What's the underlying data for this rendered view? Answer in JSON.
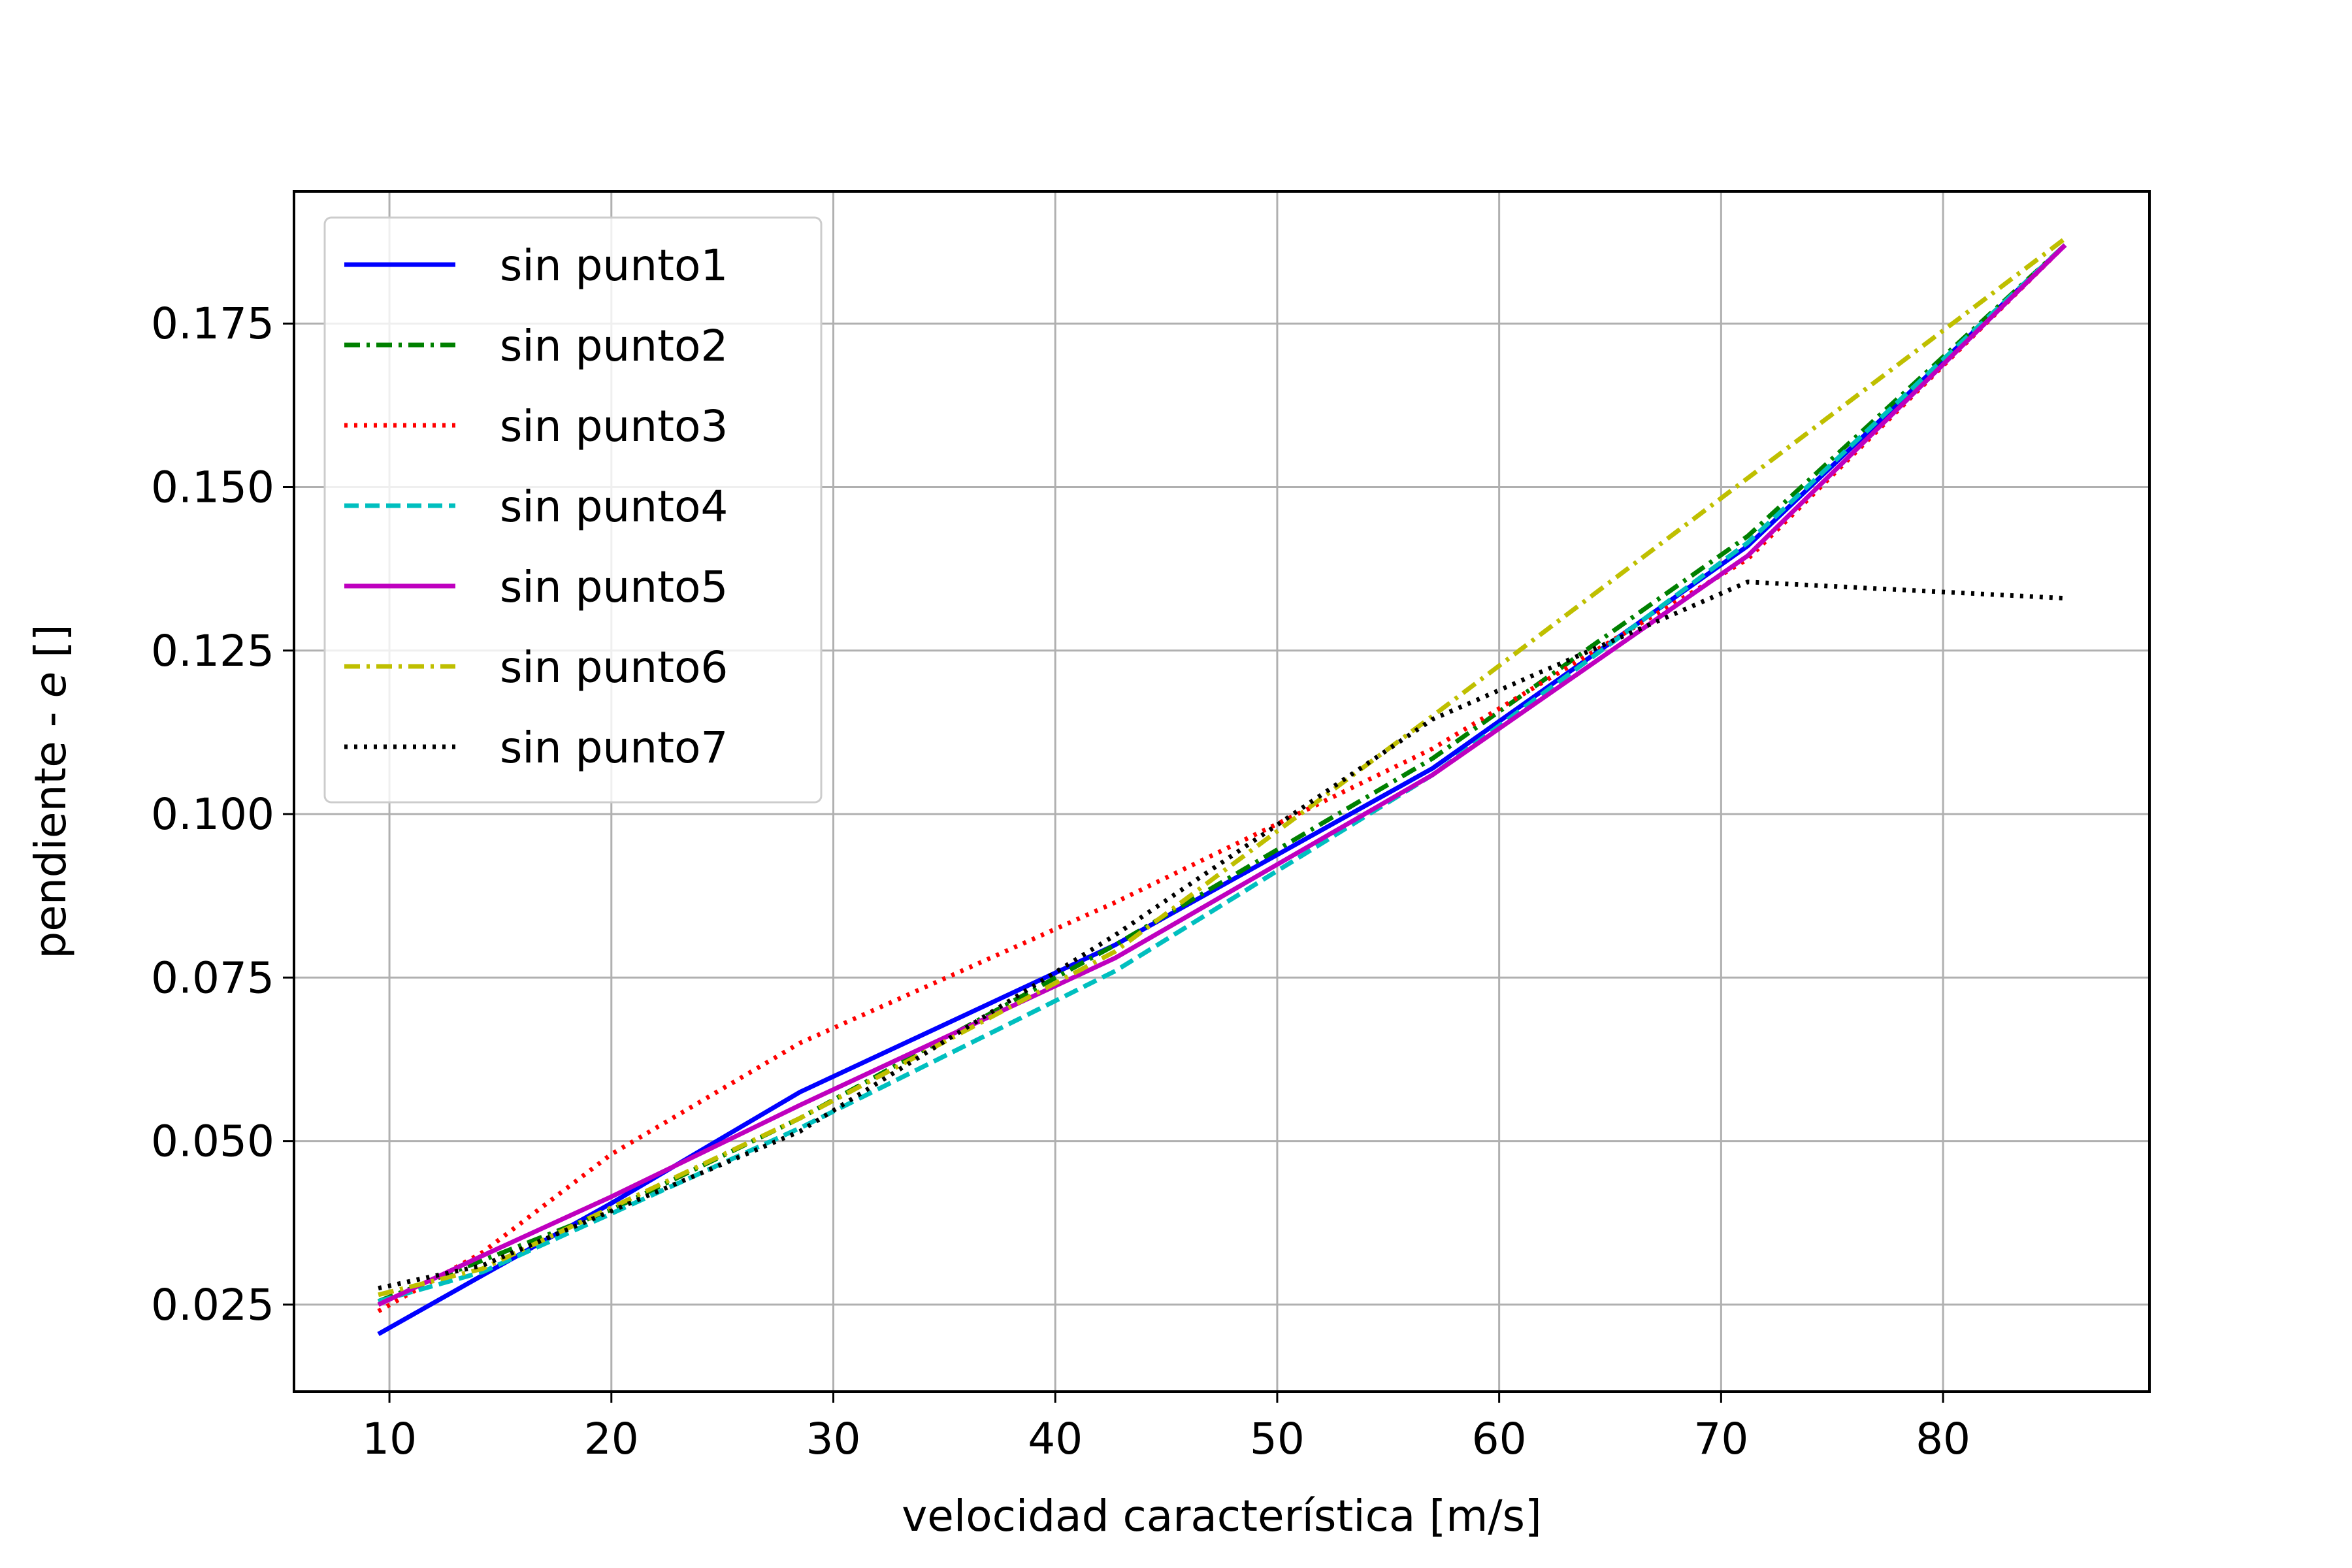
{
  "chart_data": {
    "type": "line",
    "title": "",
    "xlabel": "velocidad característica [m/s]",
    "ylabel_main": "pendiente - ",
    "ylabel_italic": "e",
    "ylabel_tail": " []",
    "xlim": [
      5.7,
      89.3
    ],
    "ylim": [
      0.0117,
      0.1952
    ],
    "xticks": [
      10,
      20,
      30,
      40,
      50,
      60,
      70,
      80
    ],
    "xtick_labels": [
      "10",
      "20",
      "30",
      "40",
      "50",
      "60",
      "70",
      "80"
    ],
    "yticks": [
      0.025,
      0.05,
      0.075,
      0.1,
      0.125,
      0.15,
      0.175
    ],
    "ytick_labels": [
      "0.025",
      "0.050",
      "0.075",
      "0.100",
      "0.125",
      "0.150",
      "0.175"
    ],
    "grid": true,
    "legend_position": "upper-left",
    "series": [
      {
        "name": "sin punto1",
        "color": "#0000ff",
        "dash": "solid",
        "x": [
          9.5,
          14.2,
          20.0,
          28.5,
          42.7,
          57.0,
          71.2,
          85.5
        ],
        "y": [
          0.0205,
          0.0295,
          0.0405,
          0.0575,
          0.08,
          0.107,
          0.141,
          0.187
        ]
      },
      {
        "name": "sin punto2",
        "color": "#008000",
        "dash": "dashdot",
        "x": [
          9.5,
          20.0,
          28.5,
          42.7,
          57.0,
          71.2,
          85.5
        ],
        "y": [
          0.0255,
          0.0395,
          0.0535,
          0.08,
          0.1085,
          0.1425,
          0.187
        ]
      },
      {
        "name": "sin punto3",
        "color": "#ff0000",
        "dash": "dotted",
        "x": [
          9.5,
          14.2,
          20.0,
          28.5,
          42.7,
          57.0,
          71.2,
          85.5
        ],
        "y": [
          0.024,
          0.033,
          0.048,
          0.065,
          0.0865,
          0.11,
          0.139,
          0.187
        ]
      },
      {
        "name": "sin punto4",
        "color": "#00bfbf",
        "dash": "dashed",
        "x": [
          9.5,
          14.2,
          28.5,
          42.7,
          57.0,
          71.2,
          85.5
        ],
        "y": [
          0.0255,
          0.03,
          0.052,
          0.076,
          0.106,
          0.1415,
          0.187
        ]
      },
      {
        "name": "sin punto5",
        "color": "#bf00bf",
        "dash": "solid",
        "x": [
          9.5,
          14.2,
          20.0,
          28.5,
          42.7,
          57.0,
          71.2,
          85.5
        ],
        "y": [
          0.025,
          0.0325,
          0.0415,
          0.0555,
          0.078,
          0.106,
          0.1395,
          0.187
        ]
      },
      {
        "name": "sin punto6",
        "color": "#bfbf00",
        "dash": "dashdot",
        "x": [
          9.5,
          14.2,
          28.5,
          42.7,
          57.0,
          85.5
        ],
        "y": [
          0.0265,
          0.0305,
          0.0535,
          0.079,
          0.115,
          0.188
        ]
      },
      {
        "name": "sin punto7",
        "color": "#000000",
        "dash": "dotted",
        "x": [
          9.5,
          14.2,
          28.5,
          42.7,
          57.0,
          71.2,
          85.5
        ],
        "y": [
          0.0275,
          0.031,
          0.0515,
          0.0815,
          0.1145,
          0.1355,
          0.133
        ]
      }
    ]
  }
}
